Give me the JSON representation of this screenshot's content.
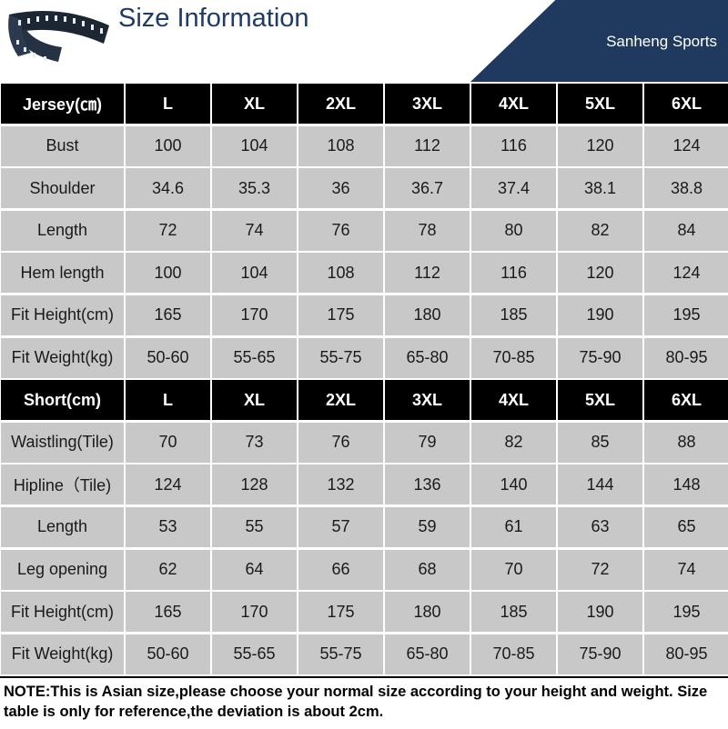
{
  "header": {
    "title": "Size Information",
    "brand": "Sanheng Sports",
    "tape_icon": "measuring-tape-icon"
  },
  "colors": {
    "title": "#1f3b66",
    "banner": "#1f3a5e",
    "header_cell": "#000000",
    "body_cell": "#c8c8c8"
  },
  "jersey": {
    "header": [
      "Jersey(㎝)",
      "L",
      "XL",
      "2XL",
      "3XL",
      "4XL",
      "5XL",
      "6XL"
    ],
    "rows": [
      [
        "Bust",
        "100",
        "104",
        "108",
        "112",
        "116",
        "120",
        "124"
      ],
      [
        "Shoulder",
        "34.6",
        "35.3",
        "36",
        "36.7",
        "37.4",
        "38.1",
        "38.8"
      ],
      [
        "Length",
        "72",
        "74",
        "76",
        "78",
        "80",
        "82",
        "84"
      ],
      [
        "Hem length",
        "100",
        "104",
        "108",
        "112",
        "116",
        "120",
        "124"
      ],
      [
        "Fit Height(cm)",
        "165",
        "170",
        "175",
        "180",
        "185",
        "190",
        "195"
      ],
      [
        "Fit Weight(kg)",
        "50-60",
        "55-65",
        "55-75",
        "65-80",
        "70-85",
        "75-90",
        "80-95"
      ]
    ]
  },
  "short": {
    "header": [
      "Short(cm)",
      "L",
      "XL",
      "2XL",
      "3XL",
      "4XL",
      "5XL",
      "6XL"
    ],
    "rows": [
      [
        "Waistling(Tile)",
        "70",
        "73",
        "76",
        "79",
        "82",
        "85",
        "88"
      ],
      [
        "Hipline（Tile)",
        "124",
        "128",
        "132",
        "136",
        "140",
        "144",
        "148"
      ],
      [
        "Length",
        "53",
        "55",
        "57",
        "59",
        "61",
        "63",
        "65"
      ],
      [
        "Leg opening",
        "62",
        "64",
        "66",
        "68",
        "70",
        "72",
        "74"
      ],
      [
        "Fit Height(cm)",
        "165",
        "170",
        "175",
        "180",
        "185",
        "190",
        "195"
      ],
      [
        "Fit Weight(kg)",
        "50-60",
        "55-65",
        "55-75",
        "65-80",
        "70-85",
        "75-90",
        "80-95"
      ]
    ]
  },
  "note": "NOTE:This is Asian size,please choose your normal size according to your height and weight. Size table is only for reference,the deviation is about 2cm."
}
